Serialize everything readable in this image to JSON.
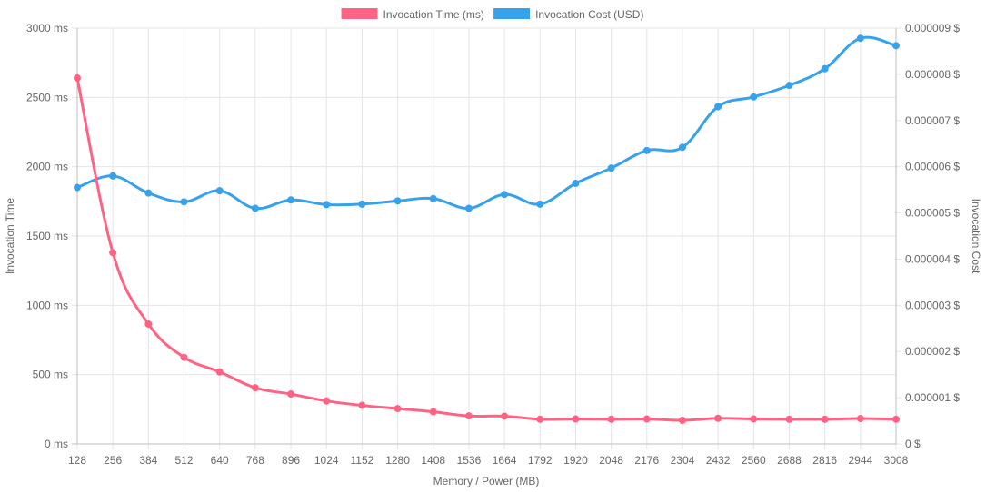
{
  "chart_data": {
    "type": "line",
    "x_label": "Memory / Power (MB)",
    "y_left_label": "Invocation Time",
    "y_right_label": "Invocation Cost",
    "x_categories": [
      "128",
      "256",
      "384",
      "512",
      "640",
      "768",
      "896",
      "1024",
      "1152",
      "1280",
      "1408",
      "1536",
      "1664",
      "1792",
      "1920",
      "2048",
      "2176",
      "2304",
      "2432",
      "2560",
      "2688",
      "2816",
      "2944",
      "3008"
    ],
    "y_left_ticks": [
      "0 ms",
      "500 ms",
      "1000 ms",
      "1500 ms",
      "2000 ms",
      "2500 ms",
      "3000 ms"
    ],
    "y_left_range": [
      0,
      3000
    ],
    "y_right_ticks": [
      "0 $",
      "0.000001 $",
      "0.000002 $",
      "0.000003 $",
      "0.000004 $",
      "0.000005 $",
      "0.000006 $",
      "0.000007 $",
      "0.000008 $",
      "0.000009 $"
    ],
    "y_right_range": [
      0,
      9e-06
    ],
    "legend_position": "top-center",
    "grid": true,
    "series": [
      {
        "name": "Invocation Time (ms)",
        "axis": "left",
        "color": "#ff6384",
        "values": [
          2640,
          1380,
          865,
          625,
          520,
          405,
          360,
          310,
          278,
          255,
          232,
          202,
          200,
          178,
          180,
          178,
          180,
          170,
          185,
          180,
          178,
          178,
          183,
          178
        ]
      },
      {
        "name": "Invocation Cost (USD)",
        "axis": "right",
        "color": "#36a2eb",
        "values": [
          5.55e-06,
          5.8e-06,
          5.43e-06,
          5.24e-06,
          5.48e-06,
          5.1e-06,
          5.28e-06,
          5.18e-06,
          5.19e-06,
          5.26e-06,
          5.31e-06,
          5.1e-06,
          5.4e-06,
          5.19e-06,
          5.64e-06,
          5.97e-06,
          6.35e-06,
          6.42e-06,
          7.3e-06,
          7.51e-06,
          7.76e-06,
          8.12e-06,
          8.78e-06,
          8.62e-06
        ]
      }
    ]
  }
}
